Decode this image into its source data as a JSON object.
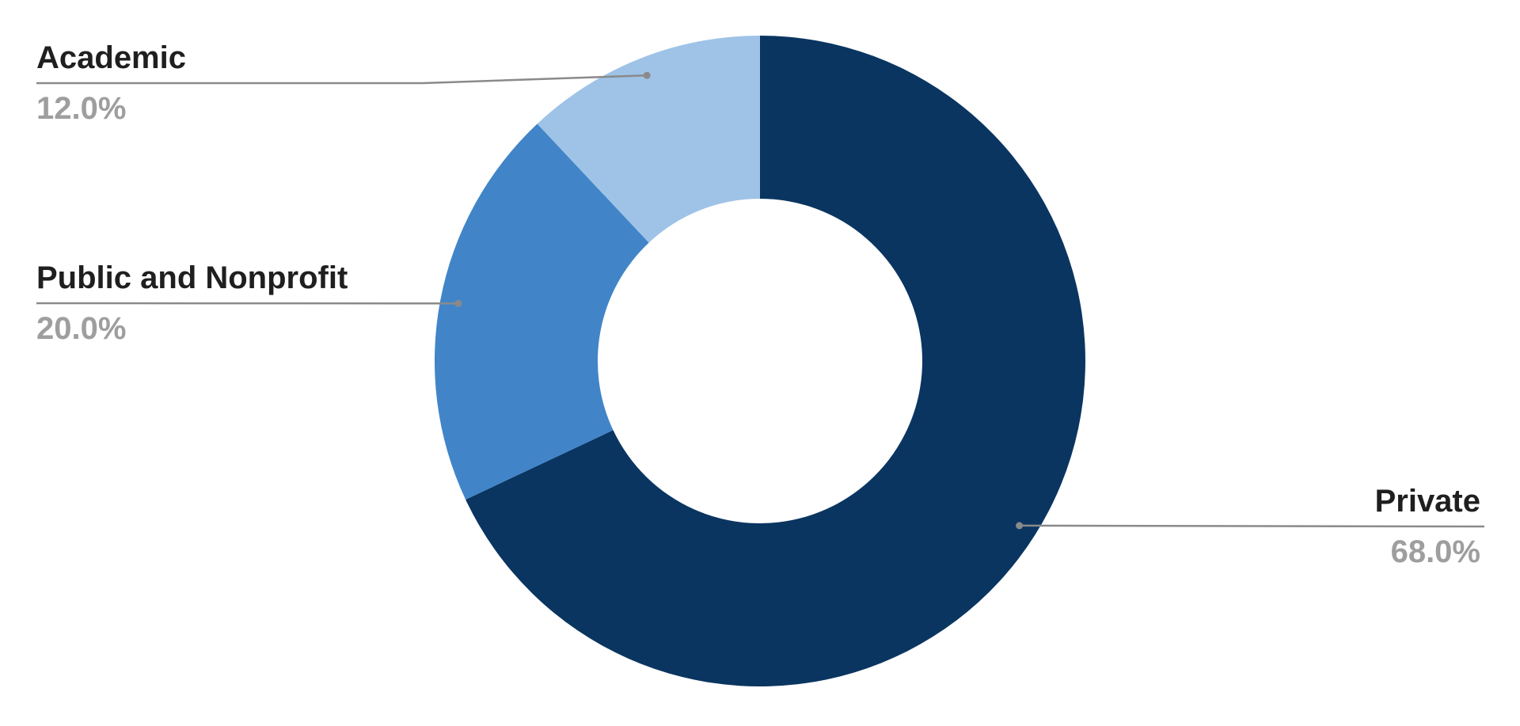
{
  "chart_data": {
    "type": "pie",
    "donut": true,
    "title": "",
    "categories": [
      "Private",
      "Public and Nonprofit",
      "Academic"
    ],
    "values": [
      68.0,
      20.0,
      12.0
    ],
    "value_labels": [
      "68.0%",
      "20.0%",
      "12.0%"
    ],
    "colors": [
      "#0a3561",
      "#4185c8",
      "#9fc3e7"
    ],
    "start": "12 o'clock",
    "direction": "clockwise",
    "legend": "none",
    "label_style": "callout",
    "label_color": "#1f1f1f",
    "value_label_color": "#9e9e9e",
    "leader_line_color": "#8a8a8a"
  }
}
